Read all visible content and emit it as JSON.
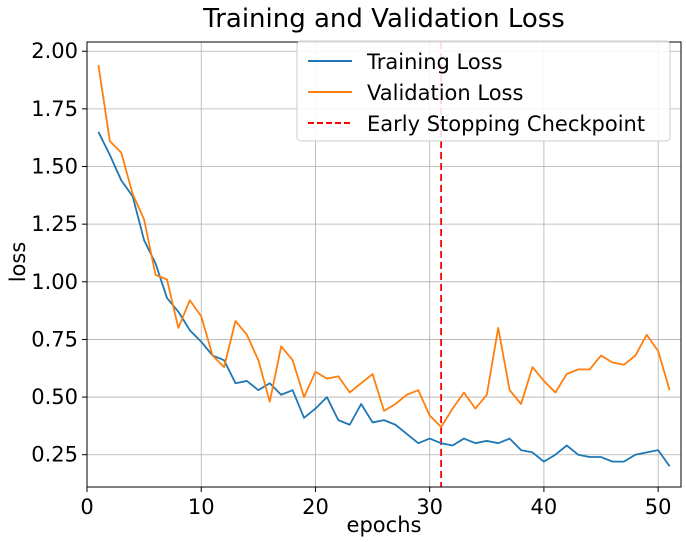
{
  "chart_data": {
    "type": "line",
    "title": "Training and Validation Loss",
    "xlabel": "epochs",
    "ylabel": "loss",
    "xlim": [
      0,
      52
    ],
    "ylim": [
      0.11,
      2.04
    ],
    "xticks": [
      0,
      10,
      20,
      30,
      40,
      50
    ],
    "yticks": [
      0.25,
      0.5,
      0.75,
      1.0,
      1.25,
      1.5,
      1.75,
      2.0
    ],
    "xtick_labels": [
      "0",
      "10",
      "20",
      "30",
      "40",
      "50"
    ],
    "ytick_labels": [
      "0.25",
      "0.50",
      "0.75",
      "1.00",
      "1.25",
      "1.50",
      "1.75",
      "2.00"
    ],
    "grid": true,
    "legend_position": "top-right",
    "x": [
      1,
      2,
      3,
      4,
      5,
      6,
      7,
      8,
      9,
      10,
      11,
      12,
      13,
      14,
      15,
      16,
      17,
      18,
      19,
      20,
      21,
      22,
      23,
      24,
      25,
      26,
      27,
      28,
      29,
      30,
      31,
      32,
      33,
      34,
      35,
      36,
      37,
      38,
      39,
      40,
      41,
      42,
      43,
      44,
      45,
      46,
      47,
      48,
      49,
      50,
      51
    ],
    "series": [
      {
        "name": "Training Loss",
        "color": "#1f77b4",
        "values": [
          1.65,
          1.55,
          1.44,
          1.37,
          1.18,
          1.08,
          0.93,
          0.87,
          0.79,
          0.74,
          0.68,
          0.66,
          0.56,
          0.57,
          0.53,
          0.56,
          0.51,
          0.53,
          0.41,
          0.45,
          0.5,
          0.4,
          0.38,
          0.47,
          0.39,
          0.4,
          0.38,
          0.34,
          0.3,
          0.32,
          0.3,
          0.29,
          0.32,
          0.3,
          0.31,
          0.3,
          0.32,
          0.27,
          0.26,
          0.22,
          0.25,
          0.29,
          0.25,
          0.24,
          0.24,
          0.22,
          0.22,
          0.25,
          0.26,
          0.27,
          0.2
        ]
      },
      {
        "name": "Validation Loss",
        "color": "#ff7f0e",
        "values": [
          1.94,
          1.61,
          1.56,
          1.38,
          1.27,
          1.03,
          1.01,
          0.8,
          0.92,
          0.85,
          0.68,
          0.63,
          0.83,
          0.77,
          0.66,
          0.48,
          0.72,
          0.66,
          0.5,
          0.61,
          0.58,
          0.59,
          0.52,
          0.56,
          0.6,
          0.44,
          0.47,
          0.51,
          0.53,
          0.42,
          0.37,
          0.45,
          0.52,
          0.45,
          0.51,
          0.8,
          0.53,
          0.47,
          0.63,
          0.57,
          0.52,
          0.6,
          0.62,
          0.62,
          0.68,
          0.65,
          0.64,
          0.68,
          0.77,
          0.7,
          0.53
        ]
      }
    ],
    "vline": {
      "x": 31,
      "name": "Early Stopping Checkpoint",
      "color": "#ff0000",
      "style": "dashed"
    }
  }
}
